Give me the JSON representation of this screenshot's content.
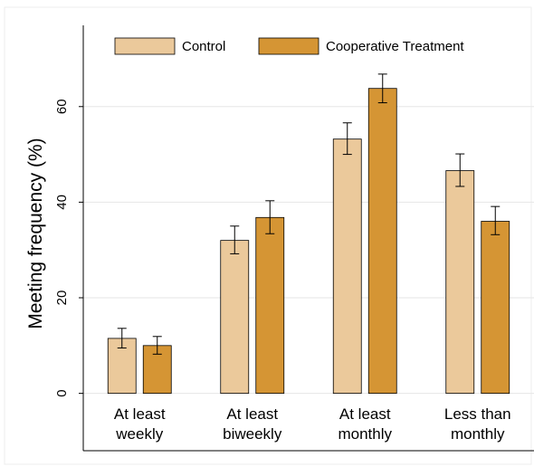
{
  "chart_data": {
    "type": "bar",
    "title": "",
    "xlabel": "",
    "ylabel": "Meeting frequency (%)",
    "ylim": [
      -12,
      77
    ],
    "yticks": [
      0,
      20,
      40,
      60
    ],
    "grid": true,
    "legend_position": "top",
    "categories": [
      [
        "At least",
        "weekly"
      ],
      [
        "At least",
        "biweekly"
      ],
      [
        "At least",
        "monthly"
      ],
      [
        "Less than",
        "monthly"
      ]
    ],
    "series": [
      {
        "name": "Control",
        "color": "#ebc99b",
        "values": [
          11.5,
          32.0,
          53.2,
          46.6
        ],
        "ci_low": [
          9.5,
          29.2,
          50.0,
          43.3
        ],
        "ci_high": [
          13.6,
          35.0,
          56.6,
          50.1
        ]
      },
      {
        "name": "Cooperative Treatment",
        "color": "#d59534",
        "values": [
          10.0,
          36.8,
          63.8,
          36.0
        ],
        "ci_low": [
          8.2,
          33.4,
          60.8,
          33.2
        ],
        "ci_high": [
          11.9,
          40.3,
          66.8,
          39.1
        ]
      }
    ]
  }
}
